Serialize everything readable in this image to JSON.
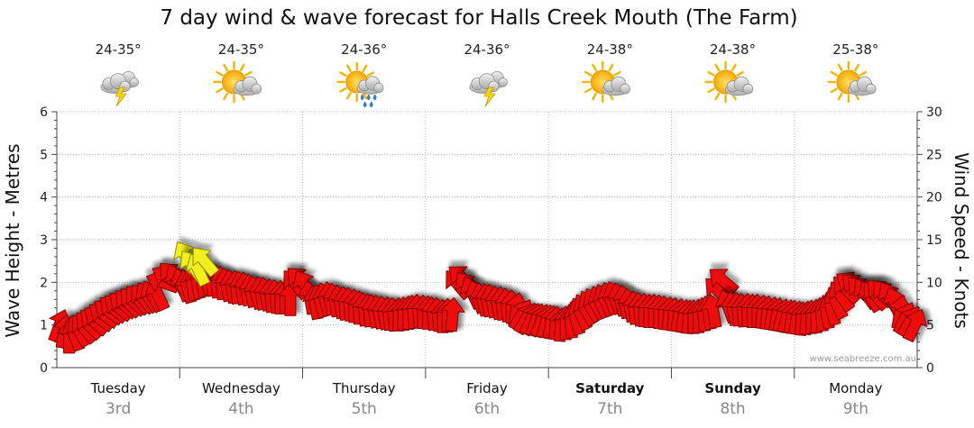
{
  "chart_data": {
    "type": "scatter",
    "title": "7 day wind & wave forecast for Halls Creek Mouth (The Farm)",
    "ylabel_left": "Wave Height - Metres",
    "ylabel_right": "Wind Speed - Knots",
    "ylim_left": [
      0,
      6
    ],
    "ylim_right": [
      0,
      30
    ],
    "yticks_left": [
      "0",
      "1",
      "2",
      "3",
      "4",
      "5",
      "6"
    ],
    "yticks_right": [
      "0",
      "5",
      "10",
      "15",
      "20",
      "25",
      "30"
    ],
    "grid": true,
    "credit": "www.seabreeze.com.au",
    "days": [
      {
        "name": "Tuesday",
        "date": "3rd",
        "bold": false,
        "temp": "24-35°",
        "icon": "storm-icon"
      },
      {
        "name": "Wednesday",
        "date": "4th",
        "bold": false,
        "temp": "24-35°",
        "icon": "partly-sunny-icon"
      },
      {
        "name": "Thursday",
        "date": "5th",
        "bold": false,
        "temp": "24-36°",
        "icon": "sun-rain-icon"
      },
      {
        "name": "Friday",
        "date": "6th",
        "bold": false,
        "temp": "24-36°",
        "icon": "storm-icon"
      },
      {
        "name": "Saturday",
        "date": "7th",
        "bold": true,
        "temp": "24-38°",
        "icon": "partly-sunny-icon"
      },
      {
        "name": "Sunday",
        "date": "8th",
        "bold": true,
        "temp": "24-38°",
        "icon": "partly-sunny-icon"
      },
      {
        "name": "Monday",
        "date": "9th",
        "bold": false,
        "temp": "25-38°",
        "icon": "partly-sunny-icon"
      }
    ],
    "series": [
      {
        "name": "Wind Speed (knots)",
        "unit": "knots",
        "marker": "direction-arrow",
        "points": [
          {
            "day": 0.02,
            "v": 4.9,
            "dir": 110
          },
          {
            "day": 0.06,
            "v": 4.2,
            "dir": 100
          },
          {
            "day": 0.1,
            "v": 3.6,
            "dir": 90
          },
          {
            "day": 0.14,
            "v": 3.9,
            "dir": 70
          },
          {
            "day": 0.18,
            "v": 4.3,
            "dir": 60
          },
          {
            "day": 0.22,
            "v": 4.6,
            "dir": 50
          },
          {
            "day": 0.26,
            "v": 5.0,
            "dir": 45
          },
          {
            "day": 0.3,
            "v": 5.4,
            "dir": 40
          },
          {
            "day": 0.34,
            "v": 5.8,
            "dir": 35
          },
          {
            "day": 0.38,
            "v": 6.2,
            "dir": 35
          },
          {
            "day": 0.42,
            "v": 6.6,
            "dir": 35
          },
          {
            "day": 0.46,
            "v": 6.9,
            "dir": 40
          },
          {
            "day": 0.5,
            "v": 7.1,
            "dir": 40
          },
          {
            "day": 0.54,
            "v": 7.4,
            "dir": 40
          },
          {
            "day": 0.58,
            "v": 7.6,
            "dir": 45
          },
          {
            "day": 0.62,
            "v": 7.8,
            "dir": 45
          },
          {
            "day": 0.66,
            "v": 8.0,
            "dir": 50
          },
          {
            "day": 0.7,
            "v": 8.1,
            "dir": 50
          },
          {
            "day": 0.74,
            "v": 8.3,
            "dir": 55
          },
          {
            "day": 0.78,
            "v": 8.4,
            "dir": 60
          },
          {
            "day": 0.82,
            "v": 8.6,
            "dir": 65
          },
          {
            "day": 0.86,
            "v": 10.0,
            "dir": 20
          },
          {
            "day": 0.9,
            "v": 10.6,
            "dir": 30
          },
          {
            "day": 0.94,
            "v": 10.8,
            "dir": 45
          },
          {
            "day": 0.98,
            "v": 10.3,
            "dir": 60
          },
          {
            "day": 1.02,
            "v": 9.7,
            "dir": 70
          },
          {
            "day": 1.06,
            "v": 9.5,
            "dir": 75
          },
          {
            "day": 1.1,
            "v": 9.8,
            "dir": 80
          },
          {
            "day": 1.14,
            "v": 10.0,
            "dir": 80
          },
          {
            "day": 1.18,
            "v": 10.2,
            "dir": 80
          },
          {
            "day": 1.22,
            "v": 10.4,
            "dir": 80
          },
          {
            "day": 1.26,
            "v": 10.3,
            "dir": 85
          },
          {
            "day": 1.3,
            "v": 10.1,
            "dir": 85
          },
          {
            "day": 1.34,
            "v": 9.9,
            "dir": 85
          },
          {
            "day": 1.38,
            "v": 9.7,
            "dir": 80
          },
          {
            "day": 1.42,
            "v": 9.5,
            "dir": 80
          },
          {
            "day": 1.46,
            "v": 9.4,
            "dir": 85
          },
          {
            "day": 1.5,
            "v": 9.3,
            "dir": 80
          },
          {
            "day": 1.54,
            "v": 9.2,
            "dir": 80
          },
          {
            "day": 1.58,
            "v": 9.0,
            "dir": 80
          },
          {
            "day": 1.62,
            "v": 8.8,
            "dir": 75
          },
          {
            "day": 1.66,
            "v": 8.7,
            "dir": 80
          },
          {
            "day": 1.7,
            "v": 8.6,
            "dir": 80
          },
          {
            "day": 1.74,
            "v": 8.4,
            "dir": 85
          },
          {
            "day": 1.78,
            "v": 8.3,
            "dir": 85
          },
          {
            "day": 1.82,
            "v": 8.2,
            "dir": 90
          },
          {
            "day": 1.86,
            "v": 8.2,
            "dir": 90
          },
          {
            "day": 1.9,
            "v": 8.0,
            "dir": 90
          },
          {
            "day": 1.94,
            "v": 9.8,
            "dir": 50
          },
          {
            "day": 1.98,
            "v": 10.2,
            "dir": 45
          },
          {
            "day": 2.02,
            "v": 9.6,
            "dir": 60
          },
          {
            "day": 2.06,
            "v": 8.2,
            "dir": 80
          },
          {
            "day": 2.1,
            "v": 7.6,
            "dir": 80
          },
          {
            "day": 2.14,
            "v": 7.8,
            "dir": 75
          },
          {
            "day": 2.18,
            "v": 8.0,
            "dir": 75
          },
          {
            "day": 2.22,
            "v": 8.1,
            "dir": 80
          },
          {
            "day": 2.26,
            "v": 7.9,
            "dir": 80
          },
          {
            "day": 2.3,
            "v": 7.7,
            "dir": 80
          },
          {
            "day": 2.34,
            "v": 7.5,
            "dir": 85
          },
          {
            "day": 2.38,
            "v": 7.4,
            "dir": 85
          },
          {
            "day": 2.42,
            "v": 7.2,
            "dir": 90
          },
          {
            "day": 2.46,
            "v": 7.0,
            "dir": 90
          },
          {
            "day": 2.5,
            "v": 6.8,
            "dir": 85
          },
          {
            "day": 2.54,
            "v": 6.7,
            "dir": 85
          },
          {
            "day": 2.58,
            "v": 6.6,
            "dir": 80
          },
          {
            "day": 2.62,
            "v": 6.5,
            "dir": 80
          },
          {
            "day": 2.66,
            "v": 6.4,
            "dir": 80
          },
          {
            "day": 2.7,
            "v": 6.3,
            "dir": 85
          },
          {
            "day": 2.74,
            "v": 6.2,
            "dir": 85
          },
          {
            "day": 2.78,
            "v": 6.2,
            "dir": 90
          },
          {
            "day": 2.82,
            "v": 6.3,
            "dir": 90
          },
          {
            "day": 2.86,
            "v": 6.4,
            "dir": 90
          },
          {
            "day": 2.9,
            "v": 6.5,
            "dir": 85
          },
          {
            "day": 2.94,
            "v": 6.6,
            "dir": 85
          },
          {
            "day": 2.98,
            "v": 6.5,
            "dir": 90
          },
          {
            "day": 3.02,
            "v": 6.4,
            "dir": 90
          },
          {
            "day": 3.06,
            "v": 6.3,
            "dir": 85
          },
          {
            "day": 3.1,
            "v": 6.2,
            "dir": 85
          },
          {
            "day": 3.14,
            "v": 6.0,
            "dir": 90
          },
          {
            "day": 3.18,
            "v": 6.1,
            "dir": 90
          },
          {
            "day": 3.22,
            "v": 6.2,
            "dir": 95
          },
          {
            "day": 3.26,
            "v": 9.8,
            "dir": 50
          },
          {
            "day": 3.3,
            "v": 10.5,
            "dir": 40
          },
          {
            "day": 3.34,
            "v": 9.5,
            "dir": 55
          },
          {
            "day": 3.38,
            "v": 8.8,
            "dir": 65
          },
          {
            "day": 3.42,
            "v": 8.3,
            "dir": 70
          },
          {
            "day": 3.46,
            "v": 8.0,
            "dir": 75
          },
          {
            "day": 3.5,
            "v": 7.9,
            "dir": 80
          },
          {
            "day": 3.54,
            "v": 7.8,
            "dir": 80
          },
          {
            "day": 3.58,
            "v": 7.6,
            "dir": 80
          },
          {
            "day": 3.62,
            "v": 7.5,
            "dir": 85
          },
          {
            "day": 3.66,
            "v": 7.3,
            "dir": 85
          },
          {
            "day": 3.7,
            "v": 7.1,
            "dir": 90
          },
          {
            "day": 3.74,
            "v": 6.8,
            "dir": 100
          },
          {
            "day": 3.78,
            "v": 6.2,
            "dir": 120
          },
          {
            "day": 3.82,
            "v": 5.8,
            "dir": 120
          },
          {
            "day": 3.86,
            "v": 5.7,
            "dir": 115
          },
          {
            "day": 3.9,
            "v": 5.6,
            "dir": 110
          },
          {
            "day": 3.94,
            "v": 5.5,
            "dir": 110
          },
          {
            "day": 3.98,
            "v": 5.4,
            "dir": 105
          },
          {
            "day": 4.02,
            "v": 5.3,
            "dir": 100
          },
          {
            "day": 4.06,
            "v": 5.2,
            "dir": 95
          },
          {
            "day": 4.1,
            "v": 5.0,
            "dir": 95
          },
          {
            "day": 4.14,
            "v": 5.2,
            "dir": 90
          },
          {
            "day": 4.18,
            "v": 5.4,
            "dir": 85
          },
          {
            "day": 4.22,
            "v": 5.8,
            "dir": 75
          },
          {
            "day": 4.26,
            "v": 6.3,
            "dir": 65
          },
          {
            "day": 4.3,
            "v": 6.8,
            "dir": 60
          },
          {
            "day": 4.34,
            "v": 7.2,
            "dir": 60
          },
          {
            "day": 4.38,
            "v": 7.5,
            "dir": 60
          },
          {
            "day": 4.42,
            "v": 7.7,
            "dir": 65
          },
          {
            "day": 4.46,
            "v": 7.9,
            "dir": 65
          },
          {
            "day": 4.5,
            "v": 8.1,
            "dir": 70
          },
          {
            "day": 4.54,
            "v": 8.2,
            "dir": 70
          },
          {
            "day": 4.58,
            "v": 8.0,
            "dir": 75
          },
          {
            "day": 4.62,
            "v": 7.7,
            "dir": 80
          },
          {
            "day": 4.66,
            "v": 7.3,
            "dir": 80
          },
          {
            "day": 4.7,
            "v": 7.0,
            "dir": 85
          },
          {
            "day": 4.74,
            "v": 6.8,
            "dir": 85
          },
          {
            "day": 4.78,
            "v": 6.7,
            "dir": 90
          },
          {
            "day": 4.82,
            "v": 6.6,
            "dir": 90
          },
          {
            "day": 4.86,
            "v": 6.6,
            "dir": 90
          },
          {
            "day": 4.9,
            "v": 6.5,
            "dir": 90
          },
          {
            "day": 4.94,
            "v": 6.4,
            "dir": 90
          },
          {
            "day": 4.98,
            "v": 6.3,
            "dir": 95
          },
          {
            "day": 5.02,
            "v": 6.2,
            "dir": 95
          },
          {
            "day": 5.06,
            "v": 6.1,
            "dir": 100
          },
          {
            "day": 5.1,
            "v": 6.0,
            "dir": 100
          },
          {
            "day": 5.14,
            "v": 5.9,
            "dir": 95
          },
          {
            "day": 5.18,
            "v": 5.9,
            "dir": 90
          },
          {
            "day": 5.22,
            "v": 6.0,
            "dir": 90
          },
          {
            "day": 5.26,
            "v": 6.2,
            "dir": 85
          },
          {
            "day": 5.3,
            "v": 6.4,
            "dir": 80
          },
          {
            "day": 5.34,
            "v": 6.6,
            "dir": 80
          },
          {
            "day": 5.38,
            "v": 9.0,
            "dir": 45
          },
          {
            "day": 5.42,
            "v": 10.2,
            "dir": 40
          },
          {
            "day": 5.46,
            "v": 7.2,
            "dir": 70
          },
          {
            "day": 5.5,
            "v": 6.9,
            "dir": 80
          },
          {
            "day": 5.54,
            "v": 6.8,
            "dir": 85
          },
          {
            "day": 5.58,
            "v": 6.7,
            "dir": 85
          },
          {
            "day": 5.62,
            "v": 6.7,
            "dir": 90
          },
          {
            "day": 5.66,
            "v": 6.6,
            "dir": 90
          },
          {
            "day": 5.7,
            "v": 6.6,
            "dir": 90
          },
          {
            "day": 5.74,
            "v": 6.5,
            "dir": 95
          },
          {
            "day": 5.78,
            "v": 6.4,
            "dir": 95
          },
          {
            "day": 5.82,
            "v": 6.3,
            "dir": 100
          },
          {
            "day": 5.86,
            "v": 6.2,
            "dir": 100
          },
          {
            "day": 5.9,
            "v": 6.1,
            "dir": 105
          },
          {
            "day": 5.94,
            "v": 6.0,
            "dir": 105
          },
          {
            "day": 5.98,
            "v": 5.9,
            "dir": 100
          },
          {
            "day": 6.02,
            "v": 5.8,
            "dir": 100
          },
          {
            "day": 6.06,
            "v": 5.7,
            "dir": 95
          },
          {
            "day": 6.1,
            "v": 5.8,
            "dir": 95
          },
          {
            "day": 6.14,
            "v": 5.9,
            "dir": 90
          },
          {
            "day": 6.18,
            "v": 6.0,
            "dir": 90
          },
          {
            "day": 6.22,
            "v": 6.2,
            "dir": 85
          },
          {
            "day": 6.26,
            "v": 6.5,
            "dir": 80
          },
          {
            "day": 6.3,
            "v": 6.9,
            "dir": 75
          },
          {
            "day": 6.34,
            "v": 7.6,
            "dir": 65
          },
          {
            "day": 6.38,
            "v": 8.4,
            "dir": 55
          },
          {
            "day": 6.42,
            "v": 9.2,
            "dir": 45
          },
          {
            "day": 6.46,
            "v": 9.8,
            "dir": 35
          },
          {
            "day": 6.5,
            "v": 9.5,
            "dir": 40
          },
          {
            "day": 6.54,
            "v": 9.1,
            "dir": 45
          },
          {
            "day": 6.58,
            "v": 8.7,
            "dir": 55
          },
          {
            "day": 6.62,
            "v": 8.4,
            "dir": 60
          },
          {
            "day": 6.66,
            "v": 8.5,
            "dir": 50
          },
          {
            "day": 6.7,
            "v": 8.8,
            "dir": 45
          },
          {
            "day": 6.74,
            "v": 8.6,
            "dir": 50
          },
          {
            "day": 6.78,
            "v": 8.2,
            "dir": 60
          },
          {
            "day": 6.82,
            "v": 7.5,
            "dir": 70
          },
          {
            "day": 6.86,
            "v": 6.5,
            "dir": 100
          },
          {
            "day": 6.9,
            "v": 5.8,
            "dir": 115
          },
          {
            "day": 6.94,
            "v": 5.4,
            "dir": 120
          },
          {
            "day": 6.98,
            "v": 5.0,
            "dir": 115
          }
        ]
      },
      {
        "name": "Wave Height (metres)",
        "unit": "metres",
        "marker": "direction-arrow",
        "color": "#f2ef1e",
        "points": [
          {
            "day": 1.05,
            "v": 2.6,
            "dir": 60
          },
          {
            "day": 1.1,
            "v": 2.4,
            "dir": 55
          },
          {
            "day": 1.15,
            "v": 2.3,
            "dir": 65
          },
          {
            "day": 1.2,
            "v": 2.5,
            "dir": 50
          }
        ]
      }
    ]
  },
  "colors": {
    "wind": "#ee1111",
    "wind_edge": "#7a0000",
    "wave": "#f2ef1e",
    "wave_edge": "#8a8400",
    "grid": "#b5b5b5",
    "axis": "#444444"
  }
}
